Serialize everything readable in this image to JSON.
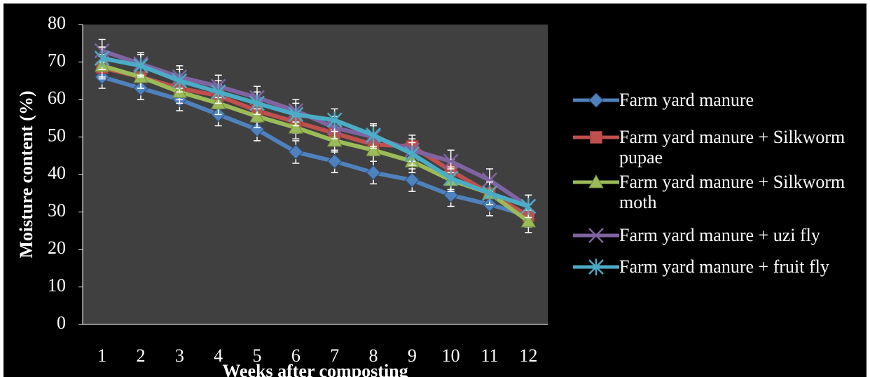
{
  "chart_data": {
    "type": "line",
    "y_label": "Moisture content (%)",
    "x_label": "Weeks after composting",
    "categories": [
      "1",
      "2",
      "3",
      "4",
      "5",
      "6",
      "7",
      "8",
      "9",
      "10",
      "11",
      "12"
    ],
    "ylim": [
      0,
      80
    ],
    "yticks": [
      0,
      10,
      20,
      30,
      40,
      50,
      60,
      70,
      80
    ],
    "series": [
      {
        "name": "Farm yard manure",
        "color": "#4f81bd",
        "marker": "diamond",
        "values": [
          66,
          63,
          60,
          56,
          52,
          46,
          43.5,
          40.5,
          38.5,
          34.5,
          32,
          29
        ],
        "errors": [
          3,
          3,
          3,
          3,
          3,
          3,
          3,
          3,
          3,
          3,
          3,
          3
        ]
      },
      {
        "name": "Farm yard manure + Silkworm pupae",
        "color": "#c0504d",
        "marker": "square",
        "values": [
          68.5,
          66,
          63,
          61,
          57,
          54,
          51,
          48,
          47.5,
          41,
          35,
          29
        ],
        "errors": [
          3,
          3,
          3,
          3,
          3,
          3,
          3,
          3,
          3,
          3,
          3,
          3
        ]
      },
      {
        "name": "Farm yard manure + Silkworm moth",
        "color": "#9bbb59",
        "marker": "triangle",
        "values": [
          69,
          66,
          62,
          59,
          55.5,
          52.5,
          49,
          46.5,
          43.5,
          38.5,
          35,
          27.5
        ],
        "errors": [
          3,
          3,
          3,
          3,
          3,
          3,
          3,
          3,
          3,
          3,
          3,
          3
        ]
      },
      {
        "name": "Farm yard manure + uzi fly",
        "color": "#8064a2",
        "marker": "x",
        "values": [
          73,
          69.5,
          66,
          63.5,
          60.5,
          57,
          52.5,
          50,
          46.5,
          43.5,
          38.5,
          31.5
        ],
        "errors": [
          3,
          3,
          3,
          3,
          3,
          3,
          3,
          3,
          3,
          3,
          3,
          3
        ]
      },
      {
        "name": "Farm yard manure + fruit fly",
        "color": "#4bacc6",
        "marker": "star",
        "values": [
          71,
          69,
          65,
          62,
          59,
          56,
          54.5,
          50.5,
          45.5,
          39,
          35,
          31.5
        ],
        "errors": [
          3,
          3,
          3,
          3,
          3,
          3,
          3,
          3,
          3,
          3,
          3,
          3
        ]
      }
    ]
  }
}
